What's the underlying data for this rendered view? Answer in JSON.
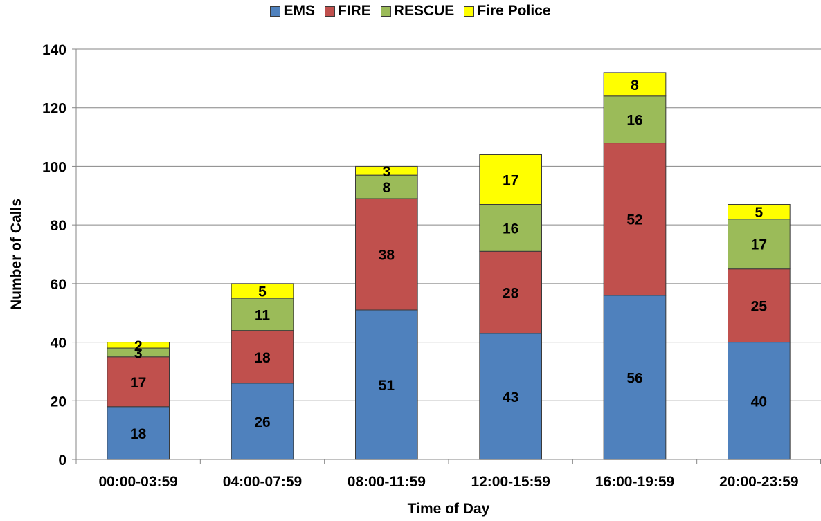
{
  "chart_data": {
    "type": "bar",
    "stacked": true,
    "xlabel": "Time of Day",
    "ylabel": "Number of Calls",
    "categories": [
      "00:00-03:59",
      "04:00-07:59",
      "08:00-11:59",
      "12:00-15:59",
      "16:00-19:59",
      "20:00-23:59"
    ],
    "series": [
      {
        "name": "EMS",
        "color": "#4f81bd",
        "values": [
          18,
          26,
          51,
          43,
          56,
          40
        ]
      },
      {
        "name": "FIRE",
        "color": "#c0504d",
        "values": [
          17,
          18,
          38,
          28,
          52,
          25
        ]
      },
      {
        "name": "RESCUE",
        "color": "#9bbb59",
        "values": [
          3,
          11,
          8,
          16,
          16,
          17
        ]
      },
      {
        "name": "Fire Police",
        "color": "#ffff00",
        "values": [
          2,
          5,
          3,
          17,
          8,
          5
        ]
      }
    ],
    "ylim": [
      0,
      140
    ],
    "yticks": [
      0,
      20,
      40,
      60,
      80,
      100,
      120,
      140
    ],
    "grid": true,
    "legend_position": "top"
  }
}
